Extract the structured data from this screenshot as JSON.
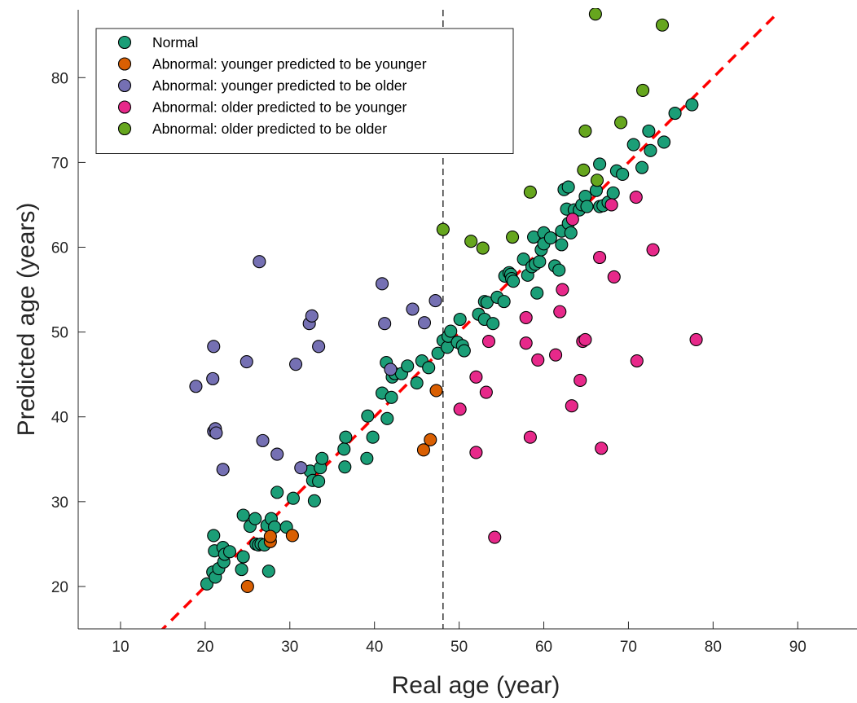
{
  "chart_data": {
    "type": "scatter",
    "xlabel": "Real age (year)",
    "ylabel": "Predicted age (years)",
    "xlim": [
      5,
      97
    ],
    "ylim": [
      15,
      88
    ],
    "xticks": [
      10,
      20,
      30,
      40,
      50,
      60,
      70,
      80,
      90
    ],
    "yticks": [
      20,
      30,
      40,
      50,
      60,
      70,
      80
    ],
    "grid": false,
    "legend_position": "top-left",
    "reference_line": {
      "style": "red dashed",
      "slope": 1,
      "intercept": 0,
      "color": "#ff0000"
    },
    "threshold_line": {
      "style": "black dashed vertical",
      "x": 48.1,
      "color": "#000000"
    },
    "series": [
      {
        "name": "Normal",
        "color": "#1b9e77",
        "points": [
          [
            20.2,
            20.3
          ],
          [
            20.9,
            21.7
          ],
          [
            21.2,
            21.1
          ],
          [
            21.0,
            26.0
          ],
          [
            21.1,
            24.2
          ],
          [
            21.6,
            22.1
          ],
          [
            22.1,
            24.6
          ],
          [
            22.2,
            22.9
          ],
          [
            22.3,
            23.8
          ],
          [
            22.9,
            24.1
          ],
          [
            24.3,
            22.0
          ],
          [
            24.5,
            23.5
          ],
          [
            24.5,
            28.4
          ],
          [
            25.3,
            27.1
          ],
          [
            25.9,
            28.0
          ],
          [
            26.0,
            25.0
          ],
          [
            26.3,
            24.9
          ],
          [
            26.6,
            25.0
          ],
          [
            27.0,
            24.9
          ],
          [
            27.3,
            27.2
          ],
          [
            27.5,
            21.8
          ],
          [
            27.8,
            28.0
          ],
          [
            28.2,
            27.0
          ],
          [
            28.5,
            31.1
          ],
          [
            29.6,
            27.0
          ],
          [
            30.4,
            30.4
          ],
          [
            32.4,
            33.6
          ],
          [
            32.7,
            32.5
          ],
          [
            32.9,
            30.1
          ],
          [
            33.4,
            32.4
          ],
          [
            33.6,
            34.0
          ],
          [
            33.8,
            35.1
          ],
          [
            36.4,
            36.2
          ],
          [
            36.5,
            34.1
          ],
          [
            36.6,
            37.6
          ],
          [
            39.1,
            35.1
          ],
          [
            39.2,
            40.1
          ],
          [
            39.8,
            37.6
          ],
          [
            40.9,
            42.8
          ],
          [
            41.4,
            46.4
          ],
          [
            41.5,
            39.8
          ],
          [
            42.0,
            42.3
          ],
          [
            42.1,
            44.7
          ],
          [
            42.4,
            45.1
          ],
          [
            43.2,
            45.1
          ],
          [
            43.9,
            46.0
          ],
          [
            45.0,
            44.0
          ],
          [
            45.6,
            46.6
          ],
          [
            46.4,
            45.8
          ],
          [
            47.5,
            47.5
          ],
          [
            48.1,
            49.0
          ],
          [
            48.6,
            48.2
          ],
          [
            48.7,
            49.5
          ],
          [
            49.0,
            50.1
          ],
          [
            49.8,
            48.8
          ],
          [
            50.1,
            51.5
          ],
          [
            50.4,
            48.4
          ],
          [
            50.6,
            47.8
          ],
          [
            52.3,
            52.1
          ],
          [
            53.0,
            51.5
          ],
          [
            53.0,
            53.6
          ],
          [
            53.3,
            53.5
          ],
          [
            54.0,
            51.0
          ],
          [
            54.5,
            54.1
          ],
          [
            55.3,
            53.6
          ],
          [
            55.4,
            56.6
          ],
          [
            55.9,
            57.0
          ],
          [
            56.1,
            56.8
          ],
          [
            56.2,
            56.3
          ],
          [
            56.4,
            56.0
          ],
          [
            57.6,
            58.6
          ],
          [
            58.1,
            56.7
          ],
          [
            58.6,
            57.7
          ],
          [
            58.8,
            61.2
          ],
          [
            59.0,
            58.0
          ],
          [
            59.2,
            54.6
          ],
          [
            59.5,
            58.3
          ],
          [
            59.7,
            59.7
          ],
          [
            60.0,
            61.7
          ],
          [
            60.0,
            60.4
          ],
          [
            60.8,
            61.1
          ],
          [
            61.3,
            57.8
          ],
          [
            61.8,
            57.3
          ],
          [
            62.1,
            60.3
          ],
          [
            62.1,
            61.9
          ],
          [
            62.4,
            66.8
          ],
          [
            62.7,
            64.5
          ],
          [
            62.9,
            67.1
          ],
          [
            62.9,
            62.8
          ],
          [
            63.2,
            61.7
          ],
          [
            63.6,
            64.4
          ],
          [
            64.2,
            64.4
          ],
          [
            64.5,
            65.0
          ],
          [
            64.9,
            66.0
          ],
          [
            65.1,
            64.8
          ],
          [
            66.2,
            66.7
          ],
          [
            66.6,
            69.8
          ],
          [
            66.6,
            64.8
          ],
          [
            67.0,
            64.9
          ],
          [
            67.6,
            65.3
          ],
          [
            68.2,
            66.4
          ],
          [
            68.6,
            69.0
          ],
          [
            69.3,
            68.6
          ],
          [
            70.6,
            72.1
          ],
          [
            71.6,
            69.4
          ],
          [
            72.4,
            73.7
          ],
          [
            72.6,
            71.4
          ],
          [
            74.2,
            72.4
          ],
          [
            75.5,
            75.8
          ],
          [
            77.5,
            76.8
          ]
        ]
      },
      {
        "name": "Abnormal: younger predicted to be younger",
        "color": "#d95f02",
        "points": [
          [
            25.0,
            20.0
          ],
          [
            27.7,
            25.3
          ],
          [
            27.7,
            25.9
          ],
          [
            30.3,
            26.0
          ],
          [
            45.8,
            36.1
          ],
          [
            46.6,
            37.3
          ],
          [
            47.3,
            43.1
          ]
        ]
      },
      {
        "name": "Abnormal: younger predicted to be older",
        "color": "#7570b3",
        "points": [
          [
            18.9,
            43.6
          ],
          [
            20.9,
            44.5
          ],
          [
            21.0,
            48.3
          ],
          [
            21.0,
            38.3
          ],
          [
            21.2,
            38.6
          ],
          [
            21.3,
            38.1
          ],
          [
            22.1,
            33.8
          ],
          [
            24.9,
            46.5
          ],
          [
            26.4,
            58.3
          ],
          [
            26.8,
            37.2
          ],
          [
            28.5,
            35.6
          ],
          [
            30.7,
            46.2
          ],
          [
            31.3,
            34.0
          ],
          [
            32.3,
            51.0
          ],
          [
            32.6,
            51.9
          ],
          [
            33.4,
            48.3
          ],
          [
            40.9,
            55.7
          ],
          [
            41.2,
            51.0
          ],
          [
            41.9,
            45.6
          ],
          [
            44.5,
            52.7
          ],
          [
            45.9,
            51.1
          ],
          [
            47.2,
            53.7
          ]
        ]
      },
      {
        "name": "Abnormal: older predicted to be younger",
        "color": "#e7298a",
        "points": [
          [
            50.1,
            40.9
          ],
          [
            52.0,
            44.7
          ],
          [
            52.0,
            35.8
          ],
          [
            53.2,
            42.9
          ],
          [
            53.5,
            48.9
          ],
          [
            54.2,
            25.8
          ],
          [
            57.9,
            51.7
          ],
          [
            58.4,
            37.6
          ],
          [
            59.3,
            46.7
          ],
          [
            62.2,
            55.0
          ],
          [
            61.9,
            52.4
          ],
          [
            61.4,
            47.3
          ],
          [
            63.4,
            63.3
          ],
          [
            63.3,
            41.3
          ],
          [
            64.3,
            44.3
          ],
          [
            64.6,
            48.9
          ],
          [
            64.9,
            49.1
          ],
          [
            66.6,
            58.8
          ],
          [
            66.8,
            36.3
          ],
          [
            68.0,
            65.0
          ],
          [
            68.3,
            56.5
          ],
          [
            70.9,
            65.9
          ],
          [
            71.0,
            46.6
          ],
          [
            72.9,
            59.7
          ],
          [
            78.0,
            49.1
          ],
          [
            57.9,
            48.7
          ]
        ]
      },
      {
        "name": "Abnormal: older predicted to be older",
        "color": "#66a61e",
        "points": [
          [
            48.1,
            62.1
          ],
          [
            51.4,
            60.7
          ],
          [
            52.8,
            59.9
          ],
          [
            56.3,
            61.2
          ],
          [
            58.4,
            66.5
          ],
          [
            64.7,
            69.1
          ],
          [
            64.9,
            73.7
          ],
          [
            66.1,
            87.5
          ],
          [
            66.3,
            67.9
          ],
          [
            69.1,
            74.7
          ],
          [
            71.7,
            78.5
          ],
          [
            74.0,
            86.2
          ]
        ]
      }
    ]
  }
}
